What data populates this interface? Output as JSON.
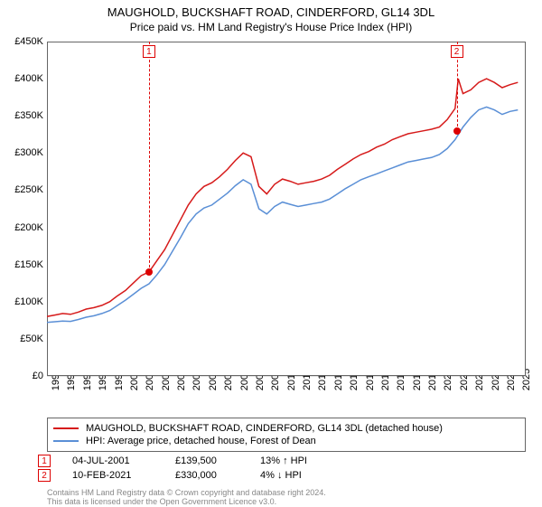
{
  "title": "MAUGHOLD, BUCKSHAFT ROAD, CINDERFORD, GL14 3DL",
  "subtitle": "Price paid vs. HM Land Registry's House Price Index (HPI)",
  "chart": {
    "type": "line",
    "x_years": [
      1995,
      1996,
      1997,
      1998,
      1999,
      2000,
      2001,
      2002,
      2003,
      2004,
      2005,
      2006,
      2007,
      2008,
      2009,
      2010,
      2011,
      2012,
      2013,
      2014,
      2015,
      2016,
      2017,
      2018,
      2019,
      2020,
      2021,
      2022,
      2023,
      2024,
      2025
    ],
    "y_ticks": [
      0,
      50000,
      100000,
      150000,
      200000,
      250000,
      300000,
      350000,
      400000,
      450000
    ],
    "y_tick_labels": [
      "£0",
      "£50K",
      "£100K",
      "£150K",
      "£200K",
      "£250K",
      "£300K",
      "£350K",
      "£400K",
      "£450K"
    ],
    "ylim": [
      0,
      450000
    ],
    "xlim": [
      1995,
      2025.5
    ],
    "background_color": "#ffffff",
    "grid_color": "#e0e0e0",
    "alt_band_color": "#f3f6fa",
    "series": [
      {
        "name": "MAUGHOLD, BUCKSHAFT ROAD, CINDERFORD, GL14 3DL (detached house)",
        "color": "#d61a1a",
        "line_width": 1.5,
        "data": [
          [
            1995,
            80000
          ],
          [
            1995.5,
            82000
          ],
          [
            1996,
            84000
          ],
          [
            1996.5,
            83000
          ],
          [
            1997,
            86000
          ],
          [
            1997.5,
            90000
          ],
          [
            1998,
            92000
          ],
          [
            1998.5,
            95000
          ],
          [
            1999,
            100000
          ],
          [
            1999.5,
            108000
          ],
          [
            2000,
            115000
          ],
          [
            2000.5,
            125000
          ],
          [
            2001,
            135000
          ],
          [
            2001.5,
            140000
          ],
          [
            2002,
            155000
          ],
          [
            2002.5,
            170000
          ],
          [
            2003,
            190000
          ],
          [
            2003.5,
            210000
          ],
          [
            2004,
            230000
          ],
          [
            2004.5,
            245000
          ],
          [
            2005,
            255000
          ],
          [
            2005.5,
            260000
          ],
          [
            2006,
            268000
          ],
          [
            2006.5,
            278000
          ],
          [
            2007,
            290000
          ],
          [
            2007.5,
            300000
          ],
          [
            2008,
            295000
          ],
          [
            2008.5,
            255000
          ],
          [
            2009,
            245000
          ],
          [
            2009.5,
            258000
          ],
          [
            2010,
            265000
          ],
          [
            2010.5,
            262000
          ],
          [
            2011,
            258000
          ],
          [
            2011.5,
            260000
          ],
          [
            2012,
            262000
          ],
          [
            2012.5,
            265000
          ],
          [
            2013,
            270000
          ],
          [
            2013.5,
            278000
          ],
          [
            2014,
            285000
          ],
          [
            2014.5,
            292000
          ],
          [
            2015,
            298000
          ],
          [
            2015.5,
            302000
          ],
          [
            2016,
            308000
          ],
          [
            2016.5,
            312000
          ],
          [
            2017,
            318000
          ],
          [
            2017.5,
            322000
          ],
          [
            2018,
            326000
          ],
          [
            2018.5,
            328000
          ],
          [
            2019,
            330000
          ],
          [
            2019.5,
            332000
          ],
          [
            2020,
            335000
          ],
          [
            2020.5,
            345000
          ],
          [
            2021,
            360000
          ],
          [
            2021.2,
            400000
          ],
          [
            2021.5,
            380000
          ],
          [
            2022,
            385000
          ],
          [
            2022.5,
            395000
          ],
          [
            2023,
            400000
          ],
          [
            2023.5,
            395000
          ],
          [
            2024,
            388000
          ],
          [
            2024.5,
            392000
          ],
          [
            2025,
            395000
          ]
        ]
      },
      {
        "name": "HPI: Average price, detached house, Forest of Dean",
        "color": "#5a8fd6",
        "line_width": 1.5,
        "data": [
          [
            1995,
            72000
          ],
          [
            1995.5,
            73000
          ],
          [
            1996,
            74000
          ],
          [
            1996.5,
            73500
          ],
          [
            1997,
            76000
          ],
          [
            1997.5,
            79000
          ],
          [
            1998,
            81000
          ],
          [
            1998.5,
            84000
          ],
          [
            1999,
            88000
          ],
          [
            1999.5,
            95000
          ],
          [
            2000,
            102000
          ],
          [
            2000.5,
            110000
          ],
          [
            2001,
            118000
          ],
          [
            2001.5,
            124000
          ],
          [
            2002,
            136000
          ],
          [
            2002.5,
            150000
          ],
          [
            2003,
            168000
          ],
          [
            2003.5,
            186000
          ],
          [
            2004,
            205000
          ],
          [
            2004.5,
            218000
          ],
          [
            2005,
            226000
          ],
          [
            2005.5,
            230000
          ],
          [
            2006,
            238000
          ],
          [
            2006.5,
            246000
          ],
          [
            2007,
            256000
          ],
          [
            2007.5,
            264000
          ],
          [
            2008,
            258000
          ],
          [
            2008.5,
            225000
          ],
          [
            2009,
            218000
          ],
          [
            2009.5,
            228000
          ],
          [
            2010,
            234000
          ],
          [
            2010.5,
            231000
          ],
          [
            2011,
            228000
          ],
          [
            2011.5,
            230000
          ],
          [
            2012,
            232000
          ],
          [
            2012.5,
            234000
          ],
          [
            2013,
            238000
          ],
          [
            2013.5,
            245000
          ],
          [
            2014,
            252000
          ],
          [
            2014.5,
            258000
          ],
          [
            2015,
            264000
          ],
          [
            2015.5,
            268000
          ],
          [
            2016,
            272000
          ],
          [
            2016.5,
            276000
          ],
          [
            2017,
            280000
          ],
          [
            2017.5,
            284000
          ],
          [
            2018,
            288000
          ],
          [
            2018.5,
            290000
          ],
          [
            2019,
            292000
          ],
          [
            2019.5,
            294000
          ],
          [
            2020,
            298000
          ],
          [
            2020.5,
            306000
          ],
          [
            2021,
            318000
          ],
          [
            2021.5,
            335000
          ],
          [
            2022,
            348000
          ],
          [
            2022.5,
            358000
          ],
          [
            2023,
            362000
          ],
          [
            2023.5,
            358000
          ],
          [
            2024,
            352000
          ],
          [
            2024.5,
            356000
          ],
          [
            2025,
            358000
          ]
        ]
      }
    ],
    "markers": [
      {
        "n": "1",
        "date": "04-JUL-2001",
        "x": 2001.5,
        "price_label": "£139,500",
        "price": 139500,
        "pct": "13% ↑ HPI"
      },
      {
        "n": "2",
        "date": "10-FEB-2021",
        "x": 2021.1,
        "price_label": "£330,000",
        "price": 330000,
        "pct": "4% ↓ HPI"
      }
    ]
  },
  "legend": {
    "items": [
      {
        "color": "#d61a1a",
        "label": "MAUGHOLD, BUCKSHAFT ROAD, CINDERFORD, GL14 3DL (detached house)"
      },
      {
        "color": "#5a8fd6",
        "label": "HPI: Average price, detached house, Forest of Dean"
      }
    ]
  },
  "footer_line1": "Contains HM Land Registry data © Crown copyright and database right 2024.",
  "footer_line2": "This data is licensed under the Open Government Licence v3.0."
}
